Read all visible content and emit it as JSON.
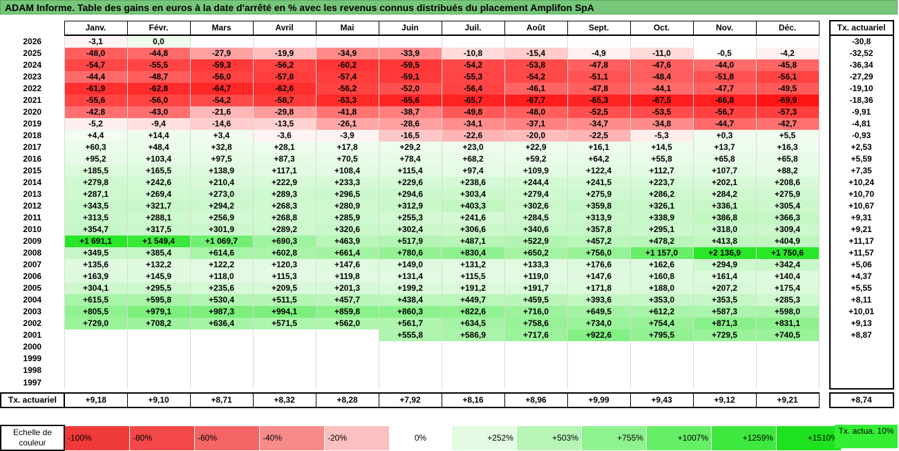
{
  "title": "ADAM Informe. Table des gains en euros à la date d'arrêté en % avec les revenus connus distribués du placement Amplifon SpA",
  "months": [
    "Janv.",
    "Févr.",
    "Mars",
    "Avril",
    "Mai",
    "Juin",
    "Juil.",
    "Août",
    "Sept.",
    "Oct.",
    "Nov.",
    "Déc."
  ],
  "tx_header": "Tx. actuariel",
  "rows": [
    {
      "year": "2026",
      "values": [
        "-3,1",
        "0,0",
        "",
        "",
        "",
        "",
        "",
        "",
        "",
        "",
        "",
        ""
      ],
      "tx": "-30,8"
    },
    {
      "year": "2025",
      "values": [
        "-48,0",
        "-44,8",
        "-27,9",
        "-19,9",
        "-34,9",
        "-33,9",
        "-10,8",
        "-15,4",
        "-4,9",
        "-11,0",
        "-0,5",
        "-4,2"
      ],
      "tx": "-32,52"
    },
    {
      "year": "2024",
      "values": [
        "-54,7",
        "-55,5",
        "-59,3",
        "-56,2",
        "-60,2",
        "-59,5",
        "-54,2",
        "-53,8",
        "-47,8",
        "-47,6",
        "-44,0",
        "-45,8"
      ],
      "tx": "-36,34"
    },
    {
      "year": "2023",
      "values": [
        "-44,4",
        "-48,7",
        "-56,0",
        "-57,8",
        "-57,4",
        "-59,1",
        "-55,3",
        "-54,2",
        "-51,1",
        "-48,4",
        "-51,8",
        "-56,1"
      ],
      "tx": "-27,29"
    },
    {
      "year": "2022",
      "values": [
        "-61,9",
        "-62,8",
        "-64,7",
        "-62,6",
        "-56,2",
        "-52,0",
        "-56,4",
        "-46,1",
        "-47,8",
        "-44,1",
        "-47,7",
        "-49,5"
      ],
      "tx": "-19,10"
    },
    {
      "year": "2021",
      "values": [
        "-55,6",
        "-56,0",
        "-54,2",
        "-58,7",
        "-63,3",
        "-65,6",
        "-65,7",
        "-67,7",
        "-65,3",
        "-67,5",
        "-66,8",
        "-69,9"
      ],
      "tx": "-18,36"
    },
    {
      "year": "2020",
      "values": [
        "-42,8",
        "-43,0",
        "-21,6",
        "-29,8",
        "-41,8",
        "-38,7",
        "-49,8",
        "-48,0",
        "-52,5",
        "-53,5",
        "-56,7",
        "-57,3"
      ],
      "tx": "-9,91"
    },
    {
      "year": "2019",
      "values": [
        "-5,2",
        "-9,4",
        "-14,6",
        "-13,5",
        "-26,1",
        "-28,6",
        "-34,1",
        "-37,1",
        "-34,7",
        "-34,8",
        "-44,7",
        "-42,7"
      ],
      "tx": "-4,81"
    },
    {
      "year": "2018",
      "values": [
        "+4,4",
        "+14,4",
        "+3,4",
        "-3,6",
        "-3,9",
        "-16,5",
        "-22,6",
        "-20,0",
        "-22,5",
        "-5,3",
        "+0,3",
        "+5,5"
      ],
      "tx": "-0,93"
    },
    {
      "year": "2017",
      "values": [
        "+60,3",
        "+48,4",
        "+32,8",
        "+28,1",
        "+17,8",
        "+29,2",
        "+23,0",
        "+22,9",
        "+16,1",
        "+14,5",
        "+13,7",
        "+16,3"
      ],
      "tx": "+2,53"
    },
    {
      "year": "2016",
      "values": [
        "+95,2",
        "+103,4",
        "+97,5",
        "+87,3",
        "+70,5",
        "+78,4",
        "+68,2",
        "+59,2",
        "+64,2",
        "+55,8",
        "+65,8",
        "+65,8"
      ],
      "tx": "+5,59"
    },
    {
      "year": "2015",
      "values": [
        "+185,5",
        "+165,5",
        "+138,9",
        "+117,1",
        "+108,4",
        "+115,4",
        "+97,4",
        "+109,9",
        "+122,4",
        "+112,7",
        "+107,7",
        "+88,2"
      ],
      "tx": "+7,35"
    },
    {
      "year": "2014",
      "values": [
        "+279,8",
        "+242,6",
        "+210,4",
        "+222,9",
        "+233,3",
        "+229,6",
        "+238,6",
        "+244,4",
        "+241,5",
        "+223,7",
        "+202,1",
        "+208,6"
      ],
      "tx": "+10,24"
    },
    {
      "year": "2013",
      "values": [
        "+287,1",
        "+269,4",
        "+273,0",
        "+289,3",
        "+296,5",
        "+294,6",
        "+303,4",
        "+279,4",
        "+275,9",
        "+286,2",
        "+284,2",
        "+275,9"
      ],
      "tx": "+10,70"
    },
    {
      "year": "2012",
      "values": [
        "+343,5",
        "+321,7",
        "+294,2",
        "+268,3",
        "+280,9",
        "+312,9",
        "+403,3",
        "+302,6",
        "+359,8",
        "+326,1",
        "+336,1",
        "+305,4"
      ],
      "tx": "+10,67"
    },
    {
      "year": "2011",
      "values": [
        "+313,5",
        "+288,1",
        "+256,9",
        "+268,8",
        "+285,9",
        "+255,3",
        "+241,6",
        "+284,5",
        "+313,9",
        "+338,9",
        "+386,8",
        "+366,3"
      ],
      "tx": "+9,31"
    },
    {
      "year": "2010",
      "values": [
        "+354,7",
        "+317,5",
        "+301,9",
        "+289,2",
        "+320,6",
        "+302,4",
        "+306,6",
        "+340,6",
        "+357,8",
        "+295,1",
        "+318,0",
        "+309,4"
      ],
      "tx": "+9,21"
    },
    {
      "year": "2009",
      "values": [
        "+1 691,1",
        "+1 549,4",
        "+1 069,7",
        "+690,3",
        "+463,9",
        "+517,9",
        "+487,1",
        "+522,9",
        "+457,2",
        "+478,2",
        "+413,8",
        "+404,9"
      ],
      "tx": "+11,17"
    },
    {
      "year": "2008",
      "values": [
        "+349,5",
        "+385,4",
        "+614,6",
        "+602,8",
        "+661,4",
        "+780,6",
        "+830,4",
        "+650,2",
        "+756,0",
        "+1 157,0",
        "+2 136,9",
        "+1 750,6"
      ],
      "tx": "+11,57"
    },
    {
      "year": "2007",
      "values": [
        "+135,6",
        "+132,2",
        "+122,2",
        "+120,3",
        "+147,6",
        "+149,0",
        "+131,2",
        "+133,3",
        "+176,6",
        "+162,6",
        "+294,9",
        "+342,4"
      ],
      "tx": "+5,06"
    },
    {
      "year": "2006",
      "values": [
        "+163,9",
        "+145,9",
        "+118,0",
        "+115,3",
        "+119,8",
        "+131,4",
        "+115,5",
        "+119,0",
        "+147,6",
        "+160,8",
        "+161,4",
        "+140,4"
      ],
      "tx": "+4,37"
    },
    {
      "year": "2005",
      "values": [
        "+304,1",
        "+295,5",
        "+235,6",
        "+209,5",
        "+201,3",
        "+199,2",
        "+191,2",
        "+191,7",
        "+171,8",
        "+188,0",
        "+207,2",
        "+175,4"
      ],
      "tx": "+5,55"
    },
    {
      "year": "2004",
      "values": [
        "+615,5",
        "+595,8",
        "+530,4",
        "+511,5",
        "+457,7",
        "+438,4",
        "+449,7",
        "+459,5",
        "+393,6",
        "+353,0",
        "+353,5",
        "+285,3"
      ],
      "tx": "+8,11"
    },
    {
      "year": "2003",
      "values": [
        "+805,5",
        "+979,1",
        "+987,3",
        "+994,1",
        "+859,8",
        "+860,3",
        "+822,6",
        "+716,0",
        "+649,5",
        "+612,2",
        "+587,3",
        "+598,0"
      ],
      "tx": "+10,01"
    },
    {
      "year": "2002",
      "values": [
        "+729,0",
        "+708,2",
        "+636,4",
        "+571,5",
        "+562,0",
        "+561,7",
        "+634,5",
        "+758,6",
        "+734,0",
        "+754,4",
        "+871,3",
        "+831,1"
      ],
      "tx": "+9,13"
    },
    {
      "year": "2001",
      "values": [
        "",
        "",
        "",
        "",
        "",
        "+555,8",
        "+586,9",
        "+717,6",
        "+922,6",
        "+795,5",
        "+729,5",
        "+740,5"
      ],
      "tx": "+8,87"
    },
    {
      "year": "2000",
      "values": [
        "",
        "",
        "",
        "",
        "",
        "",
        "",
        "",
        "",
        "",
        "",
        ""
      ],
      "tx": ""
    },
    {
      "year": "1999",
      "values": [
        "",
        "",
        "",
        "",
        "",
        "",
        "",
        "",
        "",
        "",
        "",
        ""
      ],
      "tx": ""
    },
    {
      "year": "1998",
      "values": [
        "",
        "",
        "",
        "",
        "",
        "",
        "",
        "",
        "",
        "",
        "",
        ""
      ],
      "tx": ""
    },
    {
      "year": "1997",
      "values": [
        "",
        "",
        "",
        "",
        "",
        "",
        "",
        "",
        "",
        "",
        "",
        ""
      ],
      "tx": ""
    }
  ],
  "actuarial_row": {
    "label": "Tx. actuariel",
    "values": [
      "+9,18",
      "+9,10",
      "+8,71",
      "+8,32",
      "+8,28",
      "+7,92",
      "+8,16",
      "+8,96",
      "+9,99",
      "+9,43",
      "+9,12",
      "+9,21"
    ],
    "tx": "+8,74"
  },
  "scale": {
    "label": "Echelle de couleur",
    "steps": [
      {
        "text": "-100%",
        "color": "#f03a3a",
        "align": "neg"
      },
      {
        "text": "-80%",
        "color": "#f24848",
        "align": "neg"
      },
      {
        "text": "-60%",
        "color": "#f46464",
        "align": "neg"
      },
      {
        "text": "-40%",
        "color": "#f78b8b",
        "align": "neg"
      },
      {
        "text": "-20%",
        "color": "#fbc0c0",
        "align": "neg"
      },
      {
        "text": "0%",
        "color": "#ffffff",
        "align": "zero"
      },
      {
        "text": "+252%",
        "color": "#e2fbe2",
        "align": "pos"
      },
      {
        "text": "+503%",
        "color": "#b6f5b6",
        "align": "pos"
      },
      {
        "text": "+755%",
        "color": "#8ef38e",
        "align": "pos"
      },
      {
        "text": "+1007%",
        "color": "#66ee66",
        "align": "pos"
      },
      {
        "text": "+1259%",
        "color": "#3fe83f",
        "align": "pos"
      },
      {
        "text": "+1510%",
        "color": "#1ee21e",
        "align": "pos"
      }
    ],
    "tx_legend": "Tx. actua. 10%",
    "tx_legend_color": "#33ee33"
  }
}
